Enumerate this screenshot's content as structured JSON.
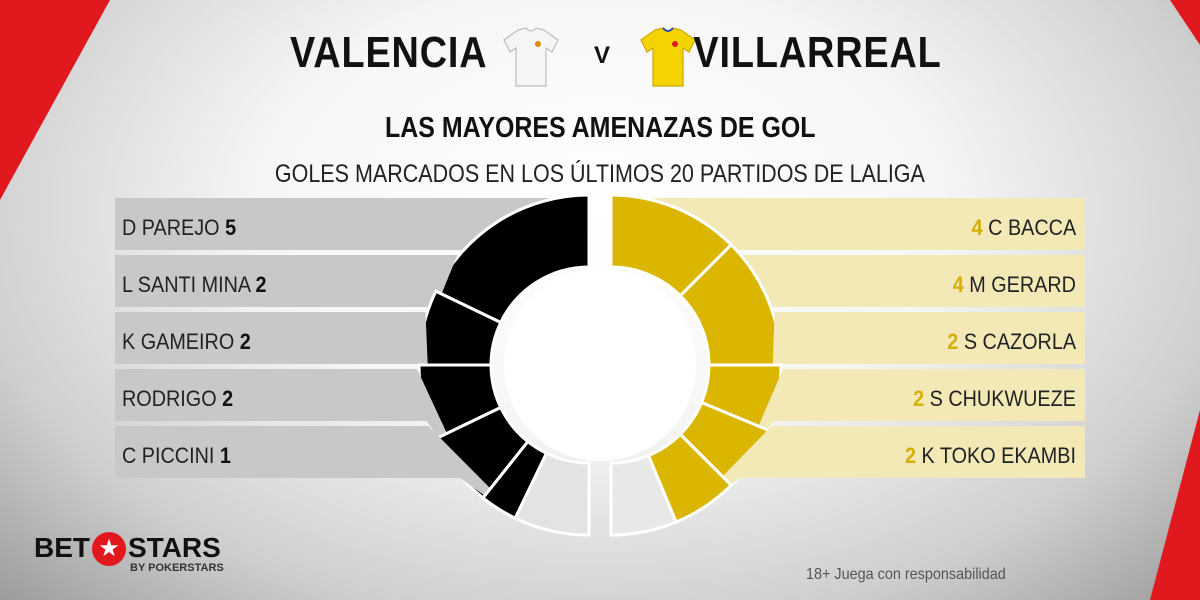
{
  "header": {
    "home_team": "VALENCIA",
    "versus": "V",
    "away_team": "VILLARREAL",
    "home_shirt_icon": "white-jersey-icon",
    "away_shirt_icon": "yellow-jersey-icon"
  },
  "title": "LAS MAYORES AMENAZAS DE GOL",
  "subtitle": "GOLES MARCADOS EN LOS ÚLTIMOS 20 PARTIDOS DE LALIGA",
  "colors": {
    "home": "#000000",
    "home_rest": "#e3e3e3",
    "home_bar": "#c8c8c8",
    "away": "#dbb600",
    "away_rest": "#e8e8e8",
    "away_bar": "#f3e9b7",
    "brand_red": "#e1191f"
  },
  "chart_data": [
    {
      "type": "pie",
      "team": "VALENCIA",
      "labels": [
        "D PAREJO",
        "L SANTI MINA",
        "K GAMEIRO",
        "RODRIGO",
        "C PICCINI"
      ],
      "values": [
        5,
        2,
        2,
        2,
        1
      ],
      "remainder_segment": true
    },
    {
      "type": "pie",
      "team": "VILLARREAL",
      "labels": [
        "C BACCA",
        "M GERARD",
        "S CAZORLA",
        "S CHUKWUEZE",
        "K TOKO EKAMBI"
      ],
      "values": [
        4,
        4,
        2,
        2,
        2
      ],
      "remainder_segment": true
    }
  ],
  "footer": {
    "logo_text_left": "BET",
    "logo_text_right": "STARS",
    "logo_sub": "BY POKERSTARS",
    "logo_icon": "star-icon",
    "note": "18+ Juega con responsabilidad"
  }
}
